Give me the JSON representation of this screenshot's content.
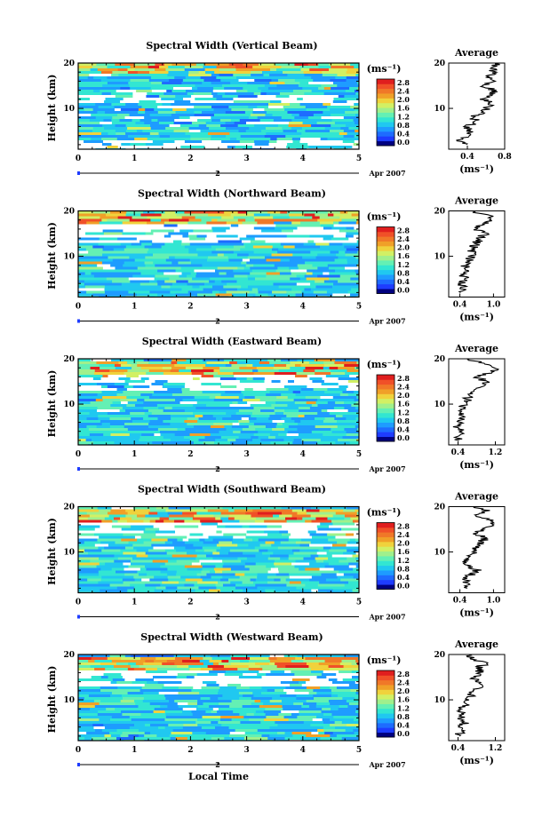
{
  "figure": {
    "xlabel": "Local Time",
    "colorbar": {
      "unit": "(ms⁻¹)",
      "ticks": [
        "0.0",
        "0.4",
        "0.8",
        "1.2",
        "1.6",
        "2.0",
        "2.4",
        "2.8"
      ],
      "colors": [
        "#000080",
        "#1e3cff",
        "#1e6cff",
        "#1e9cff",
        "#20c8f0",
        "#32e6d2",
        "#64f0b4",
        "#a0f08c",
        "#d2f064",
        "#f0d23c",
        "#f0a028",
        "#f07828",
        "#f05028",
        "#e01e1e"
      ]
    },
    "date_label": "Apr 2007",
    "date_tick": "2",
    "average_title": "Average",
    "average_xlabel": "(ms⁻¹)"
  },
  "chart_data": [
    {
      "type": "heatmap",
      "title": "Spectral Width (Vertical Beam)",
      "ylabel": "Height (km)",
      "x_ticks": [
        "0",
        "1",
        "2",
        "3",
        "4",
        "5"
      ],
      "y_ticks": [
        "10",
        "20"
      ],
      "xlim": [
        0,
        5
      ],
      "ylim": [
        1,
        20
      ],
      "profile": {
        "xlim": [
          0.2,
          0.8
        ],
        "x_ticks": [
          "0.4",
          "0.8"
        ],
        "heights": [
          2,
          3,
          4,
          5,
          6,
          7,
          8,
          9,
          10,
          11,
          12,
          13,
          14,
          15,
          16,
          17,
          18,
          19,
          20
        ],
        "values": [
          0.35,
          0.33,
          0.4,
          0.42,
          0.38,
          0.5,
          0.45,
          0.55,
          0.6,
          0.65,
          0.58,
          0.62,
          0.7,
          0.55,
          0.65,
          0.6,
          0.7,
          0.65,
          0.72
        ]
      }
    },
    {
      "type": "heatmap",
      "title": "Spectral Width (Northward Beam)",
      "ylabel": "Height (km)",
      "x_ticks": [
        "0",
        "1",
        "2",
        "3",
        "4",
        "5"
      ],
      "y_ticks": [
        "10",
        "20"
      ],
      "xlim": [
        0,
        5
      ],
      "ylim": [
        1,
        20
      ],
      "profile": {
        "xlim": [
          0.2,
          1.2
        ],
        "x_ticks": [
          "0.4",
          "1.0"
        ],
        "heights": [
          2,
          3,
          4,
          5,
          6,
          7,
          8,
          9,
          10,
          11,
          12,
          13,
          14,
          15,
          16,
          17,
          18,
          19,
          20
        ],
        "values": [
          0.4,
          0.45,
          0.42,
          0.5,
          0.45,
          0.48,
          0.5,
          0.55,
          0.6,
          0.62,
          0.65,
          0.7,
          0.75,
          0.85,
          0.7,
          0.8,
          1.0,
          0.9,
          0.6
        ]
      }
    },
    {
      "type": "heatmap",
      "title": "Spectral Width (Eastward Beam)",
      "ylabel": "Height (km)",
      "x_ticks": [
        "0",
        "1",
        "2",
        "3",
        "4",
        "5"
      ],
      "y_ticks": [
        "10",
        "20"
      ],
      "xlim": [
        0,
        5
      ],
      "ylim": [
        1,
        20
      ],
      "profile": {
        "xlim": [
          0.2,
          1.4
        ],
        "x_ticks": [
          "0.4",
          "1.2"
        ],
        "heights": [
          2,
          3,
          4,
          5,
          6,
          7,
          8,
          9,
          10,
          11,
          12,
          13,
          14,
          15,
          16,
          17,
          18,
          19,
          20
        ],
        "values": [
          0.4,
          0.42,
          0.45,
          0.4,
          0.45,
          0.5,
          0.45,
          0.48,
          0.55,
          0.6,
          0.65,
          0.75,
          0.85,
          1.0,
          0.8,
          1.1,
          1.2,
          0.9,
          0.6
        ]
      }
    },
    {
      "type": "heatmap",
      "title": "Spectral Width (Southward Beam)",
      "ylabel": "Height (km)",
      "x_ticks": [
        "0",
        "1",
        "2",
        "3",
        "4",
        "5"
      ],
      "y_ticks": [
        "10",
        "20"
      ],
      "xlim": [
        0,
        5
      ],
      "ylim": [
        1,
        20
      ],
      "profile": {
        "xlim": [
          0.2,
          1.2
        ],
        "x_ticks": [
          "0.4",
          "1.0"
        ],
        "heights": [
          2,
          3,
          4,
          5,
          6,
          7,
          8,
          9,
          10,
          11,
          12,
          13,
          14,
          15,
          16,
          17,
          18,
          19,
          20
        ],
        "values": [
          0.45,
          0.55,
          0.5,
          0.6,
          0.7,
          0.55,
          0.5,
          0.6,
          0.65,
          0.7,
          0.75,
          0.85,
          0.7,
          0.8,
          0.95,
          1.0,
          0.7,
          0.9,
          0.6
        ]
      }
    },
    {
      "type": "heatmap",
      "title": "Spectral Width (Westward Beam)",
      "ylabel": "Height (km)",
      "x_ticks": [
        "0",
        "1",
        "2",
        "3",
        "4",
        "5"
      ],
      "y_ticks": [
        "10",
        "20"
      ],
      "xlim": [
        0,
        5
      ],
      "ylim": [
        1,
        20
      ],
      "profile": {
        "xlim": [
          0.2,
          1.4
        ],
        "x_ticks": [
          "0.4",
          "1.2"
        ],
        "heights": [
          2,
          3,
          4,
          5,
          6,
          7,
          8,
          9,
          10,
          11,
          12,
          13,
          14,
          15,
          16,
          17,
          18,
          19,
          20
        ],
        "values": [
          0.4,
          0.45,
          0.42,
          0.55,
          0.45,
          0.5,
          0.48,
          0.55,
          0.6,
          0.7,
          0.65,
          1.0,
          0.85,
          0.7,
          0.9,
          0.8,
          1.0,
          0.75,
          0.6
        ]
      }
    }
  ]
}
